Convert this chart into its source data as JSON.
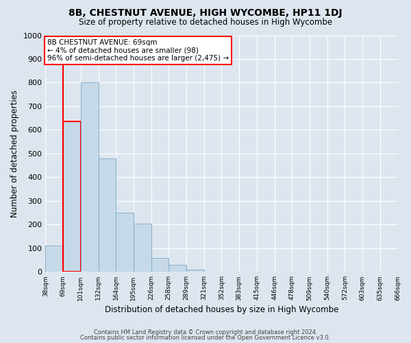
{
  "title": "8B, CHESTNUT AVENUE, HIGH WYCOMBE, HP11 1DJ",
  "subtitle": "Size of property relative to detached houses in High Wycombe",
  "xlabel": "Distribution of detached houses by size in High Wycombe",
  "ylabel": "Number of detached properties",
  "bar_values": [
    110,
    635,
    800,
    480,
    250,
    205,
    60,
    30,
    10,
    0,
    0,
    0,
    0,
    0,
    0,
    0,
    0,
    0,
    0,
    0
  ],
  "tick_labels": [
    "38sqm",
    "69sqm",
    "101sqm",
    "132sqm",
    "164sqm",
    "195sqm",
    "226sqm",
    "258sqm",
    "289sqm",
    "321sqm",
    "352sqm",
    "383sqm",
    "415sqm",
    "446sqm",
    "478sqm",
    "509sqm",
    "540sqm",
    "572sqm",
    "603sqm",
    "635sqm",
    "666sqm"
  ],
  "n_ticks": 21,
  "bar_color": "#c6d9e8",
  "bar_edge_color": "#7aaac8",
  "highlight_bar_index": 1,
  "highlight_edge_color": "red",
  "red_line_x": 0.5,
  "annotation_line1": "8B CHESTNUT AVENUE: 69sqm",
  "annotation_line2": "← 4% of detached houses are smaller (98)",
  "annotation_line3": "96% of semi-detached houses are larger (2,475) →",
  "annotation_box_facecolor": "white",
  "annotation_box_edgecolor": "red",
  "ylim": [
    0,
    1000
  ],
  "yticks": [
    0,
    100,
    200,
    300,
    400,
    500,
    600,
    700,
    800,
    900,
    1000
  ],
  "background_color": "#dde6ef",
  "grid_color": "white",
  "footer_line1": "Contains HM Land Registry data © Crown copyright and database right 2024.",
  "footer_line2": "Contains public sector information licensed under the Open Government Licence v3.0."
}
